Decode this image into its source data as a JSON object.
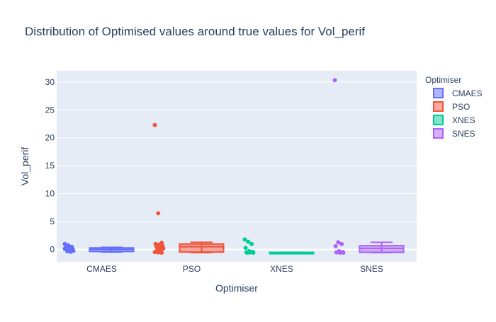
{
  "chart_data": {
    "type": "box",
    "title": "Distribution of Optimised values around true values for Vol_perif",
    "xlabel": "Optimiser",
    "ylabel": "Vol_perif",
    "ylim": [
      -2.2,
      32
    ],
    "yticks": [
      0,
      5,
      10,
      15,
      20,
      25,
      30
    ],
    "categories": [
      "CMAES",
      "PSO",
      "XNES",
      "SNES"
    ],
    "legend": {
      "title": "Optimiser",
      "position": "right"
    },
    "series": [
      {
        "name": "CMAES",
        "color": "#636efa",
        "box": {
          "lowerfence": -0.45,
          "q1": -0.35,
          "median": 0.05,
          "q3": 0.3,
          "upperfence": 0.4
        },
        "points": [
          1.0,
          0.75,
          0.5,
          0.3,
          0.2,
          0.1,
          0.0,
          -0.1,
          -0.2,
          -0.3,
          -0.4,
          0.15,
          0.05
        ]
      },
      {
        "name": "PSO",
        "color": "#ef553b",
        "box": {
          "lowerfence": -0.55,
          "q1": -0.45,
          "median": 0.5,
          "q3": 1.0,
          "upperfence": 1.3
        },
        "points": [
          22.3,
          6.5,
          1.2,
          1.0,
          0.85,
          0.7,
          0.55,
          0.4,
          0.2,
          0.0,
          -0.3,
          -0.45,
          -0.5,
          -0.55
        ]
      },
      {
        "name": "XNES",
        "color": "#00cc96",
        "box": {
          "lowerfence": -0.55,
          "q1": -0.55,
          "median": -0.55,
          "q3": -0.5,
          "upperfence": -0.5
        },
        "points": [
          1.8,
          1.4,
          1.0,
          0.3,
          -0.3,
          -0.4,
          -0.5,
          -0.5,
          -0.55,
          -0.55
        ]
      },
      {
        "name": "SNES",
        "color": "#ab63fa",
        "box": {
          "lowerfence": -0.55,
          "q1": -0.5,
          "median": 0.2,
          "q3": 0.7,
          "upperfence": 1.3
        },
        "points": [
          30.3,
          1.3,
          1.0,
          0.6,
          -0.3,
          -0.45,
          -0.5,
          -0.55,
          -0.55
        ]
      }
    ]
  }
}
